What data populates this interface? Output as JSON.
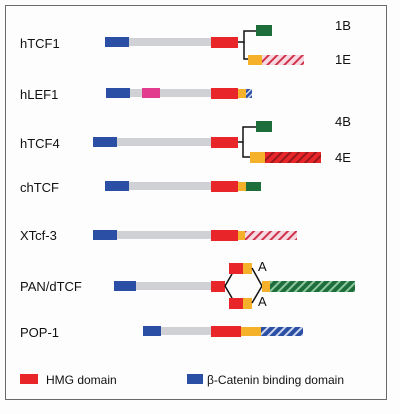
{
  "proteins": [
    {
      "key": "htcf1",
      "name": "hTCF1",
      "variants": [
        "1B",
        "1E"
      ]
    },
    {
      "key": "hlef1",
      "name": "hLEF1"
    },
    {
      "key": "htcf4",
      "name": "hTCF4",
      "variants": [
        "4B",
        "4E"
      ]
    },
    {
      "key": "chtcf",
      "name": "chTCF"
    },
    {
      "key": "xtcf3",
      "name": "XTcf-3"
    },
    {
      "key": "pan",
      "name": "PAN/dTCF",
      "variants": [
        "A",
        "A"
      ]
    },
    {
      "key": "pop1",
      "name": "POP-1"
    }
  ],
  "legend": {
    "hmg": "HMG domain",
    "catenin": "β-Catenin binding domain"
  },
  "colors": {
    "hmg": "#e8262a",
    "catenin": "#2a4fa5",
    "linker": "#cfd1d4",
    "orange": "#f6b12a",
    "green": "#1d6e3a",
    "pink": "#e23c8e",
    "frame": "#6b6b6b"
  }
}
